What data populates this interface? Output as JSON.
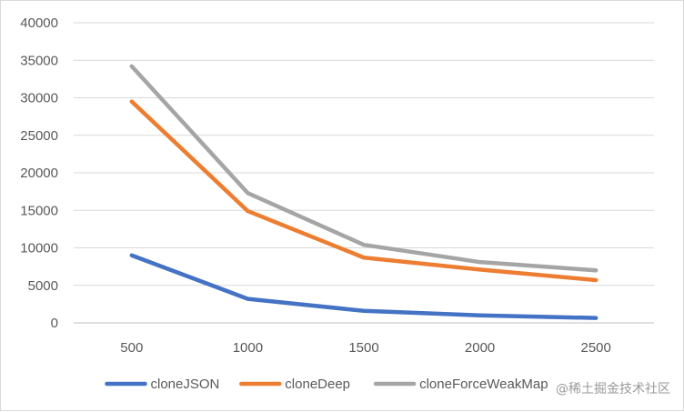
{
  "chart_data": {
    "type": "line",
    "title": "",
    "xlabel": "",
    "ylabel": "",
    "categories": [
      "500",
      "1000",
      "1500",
      "2000",
      "2500"
    ],
    "ylim": [
      0,
      40000
    ],
    "yticks": [
      0,
      5000,
      10000,
      15000,
      20000,
      25000,
      30000,
      35000,
      40000
    ],
    "grid": true,
    "legend_position": "bottom",
    "series": [
      {
        "name": "cloneJSON",
        "color": "#4472c4",
        "values": [
          9000,
          3200,
          1600,
          1000,
          650
        ]
      },
      {
        "name": "cloneDeep",
        "color": "#ed7d31",
        "values": [
          29500,
          14900,
          8700,
          7100,
          5700
        ]
      },
      {
        "name": "cloneForceWeakMap",
        "color": "#a5a5a5",
        "values": [
          34200,
          17300,
          10400,
          8100,
          7000
        ]
      }
    ]
  },
  "watermark": "@稀土掘金技术社区"
}
